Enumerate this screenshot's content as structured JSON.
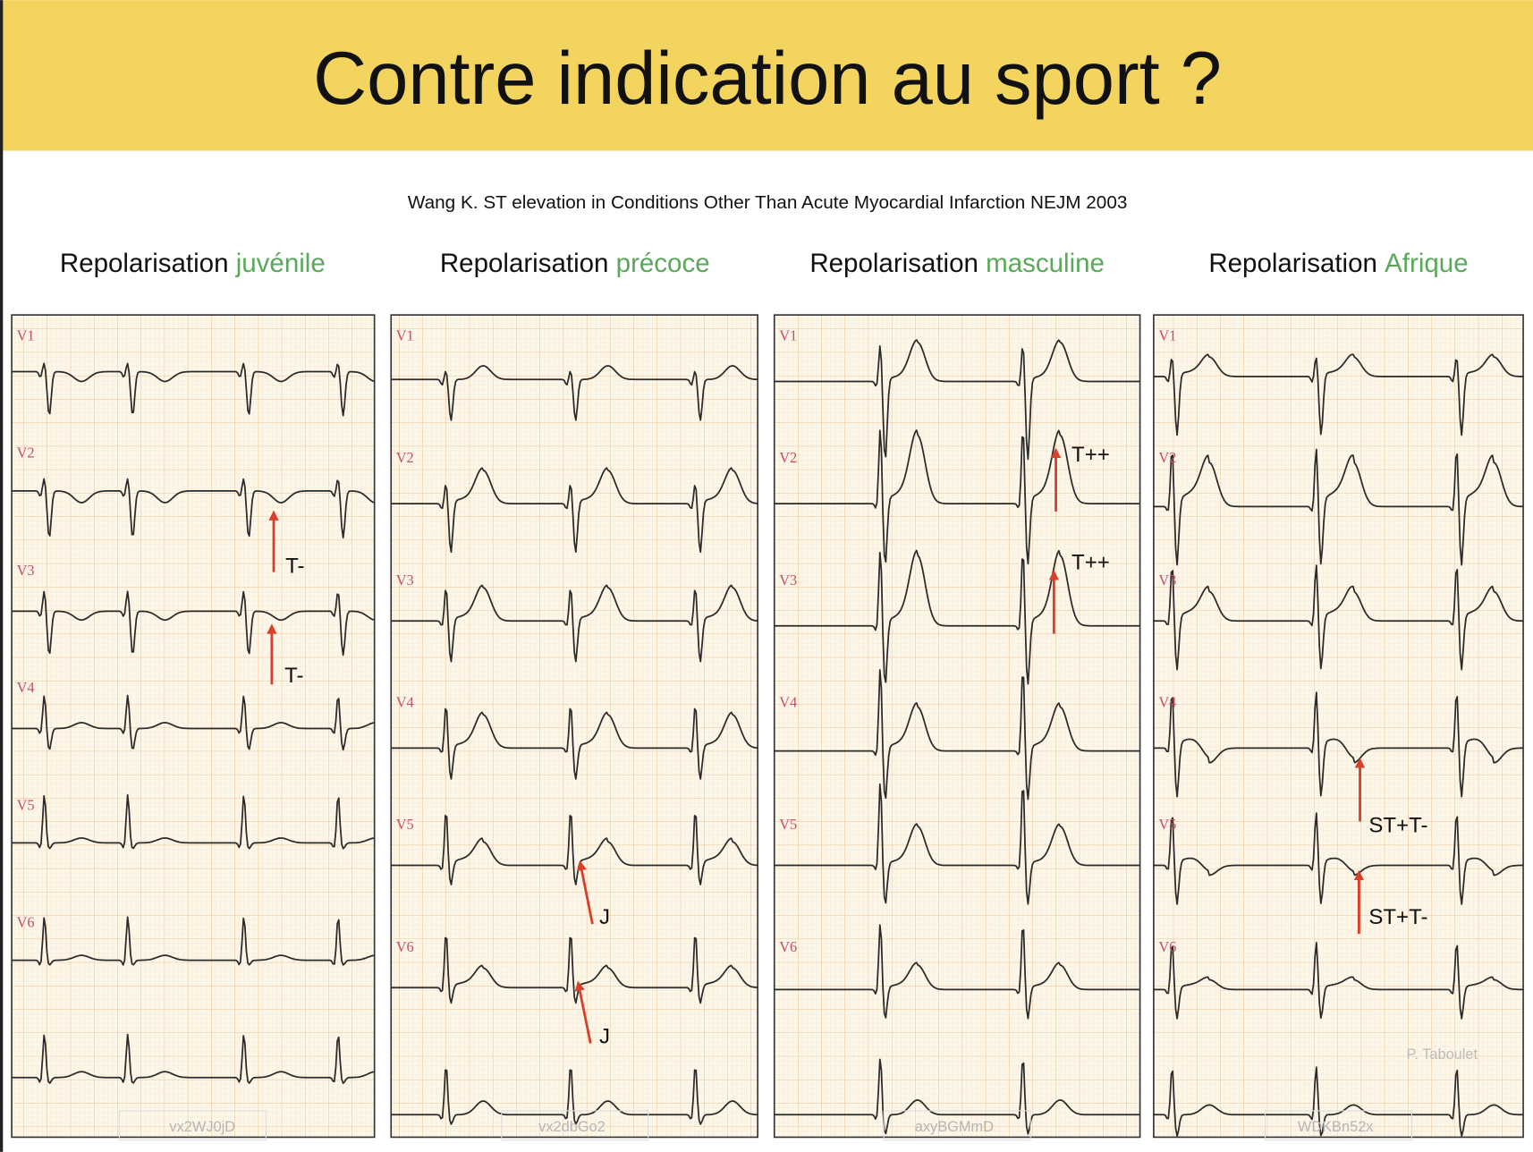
{
  "header": {
    "title": "Contre indication au sport ?"
  },
  "citation": "Wang K. ST elevation in Conditions Other Than Acute Myocardial Infarction NEJM 2003",
  "panels": [
    {
      "title": "Repolarisation",
      "highlight": "juvénile",
      "leads": [
        "V1",
        "V2",
        "V3",
        "V4",
        "V5",
        "V6"
      ],
      "code": "vx2WJ0jD",
      "annotations": [
        "T-",
        "T-"
      ]
    },
    {
      "title": "Repolarisation",
      "highlight": "précoce",
      "leads": [
        "V1",
        "V2",
        "V3",
        "V4",
        "V5",
        "V6"
      ],
      "code": "vx2dbGo2",
      "annotations": [
        "J",
        "J"
      ]
    },
    {
      "title": "Repolarisation",
      "highlight": "masculine",
      "leads": [
        "V1",
        "V2",
        "V3",
        "V4",
        "V5",
        "V6"
      ],
      "code": "axyBGMmD",
      "annotations": [
        "T++",
        "T++"
      ]
    },
    {
      "title": "Repolarisation",
      "highlight": "Afrique",
      "leads": [
        "V1",
        "V2",
        "V3",
        "V4",
        "V5",
        "V6"
      ],
      "code": "WDKBn52x",
      "annotations": [
        "ST+T-",
        "ST+T-"
      ]
    }
  ],
  "watermark": "P. Taboulet"
}
